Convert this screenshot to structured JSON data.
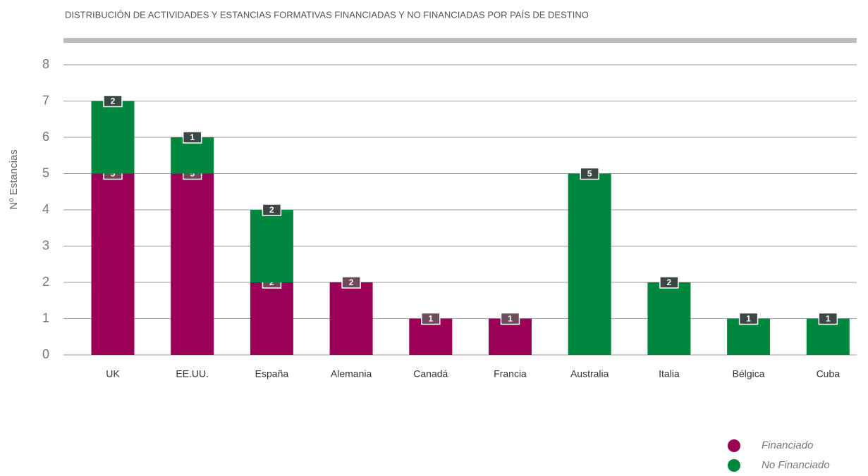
{
  "chart_data": {
    "type": "stacked_bar",
    "title": "DISTRIBUCIÓN DE ACTIVIDADES Y ESTANCIAS FORMATIVAS FINANCIADAS Y NO FINANCIADAS POR PAÍS DE DESTINO",
    "y_label": "Nº Estancias",
    "categories": [
      "UK",
      "EE.UU.",
      "España",
      "Alemania",
      "Canadá",
      "Francia",
      "Australia",
      "Italia",
      "Bélgica",
      "Cuba"
    ],
    "series": [
      {
        "name": "Financiado",
        "color": "#9b0056",
        "label_color": "#6e4a5c",
        "values": [
          5,
          5,
          2,
          2,
          1,
          1,
          null,
          null,
          null,
          null
        ]
      },
      {
        "name": "No Financiado",
        "color": "#00873e",
        "label_color": "#3b4744",
        "values": [
          2,
          1,
          2,
          null,
          null,
          null,
          5,
          2,
          1,
          1
        ]
      }
    ],
    "ylim": [
      0,
      8
    ],
    "yticks": [
      0,
      1,
      2,
      3,
      4,
      5,
      6,
      7,
      8
    ],
    "grid": true,
    "legend": "bottom-right"
  }
}
